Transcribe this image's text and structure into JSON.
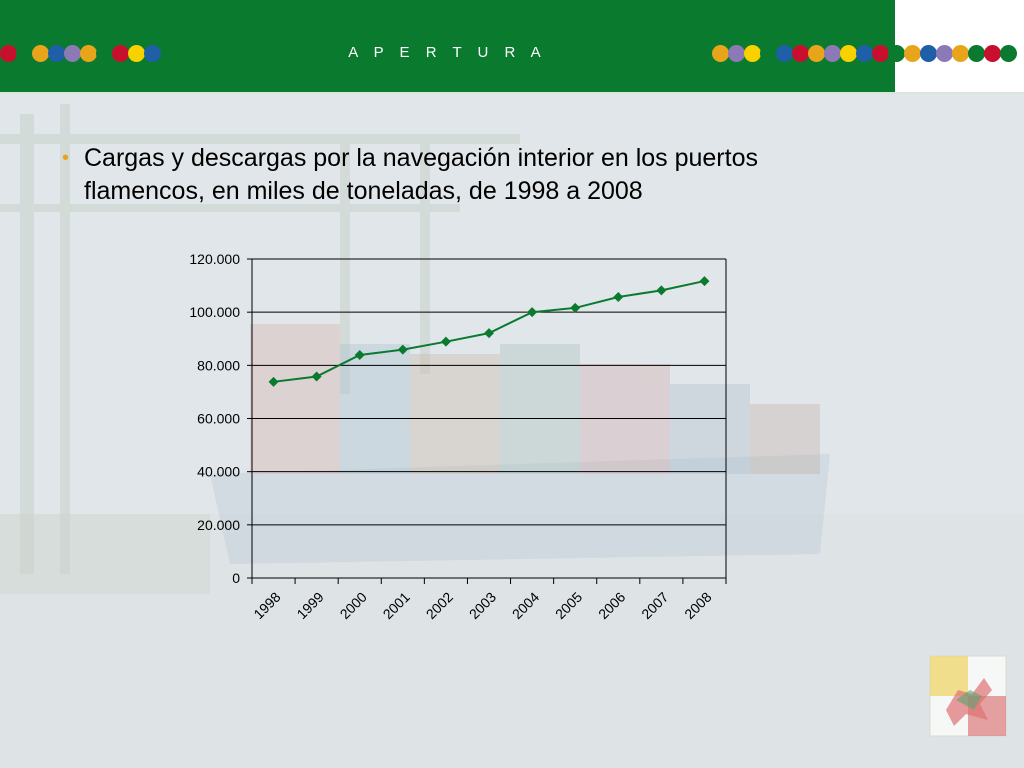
{
  "header": {
    "title": "A P E R T U R A",
    "left_dot_colors": [
      "#c8102e",
      "#0a7a2f",
      "#e8a51b",
      "#1f5fa8",
      "#8c7ab6",
      "#e8a51b",
      "#0a7a2f",
      "#c8102e",
      "#f7d100",
      "#1f5fa8"
    ],
    "right_dot_colors": [
      "#e8a51b",
      "#8c7ab6",
      "#f7d100",
      "#0a7a2f",
      "#1f5fa8",
      "#c8102e",
      "#e8a51b",
      "#8c7ab6",
      "#f7d100",
      "#1f5fa8",
      "#c8102e",
      "#0a7a2f",
      "#e8a51b",
      "#1f5fa8",
      "#8c7ab6",
      "#e8a51b",
      "#0a7a2f",
      "#c8102e",
      "#0a7a2f"
    ]
  },
  "content": {
    "bullet_text": "Cargas y descargas por la navegación interior en los puertos flamencos, en miles de toneladas, de 1998 a 2008"
  },
  "chart_data": {
    "type": "line",
    "title": "",
    "xlabel": "",
    "ylabel": "",
    "x": [
      "1998",
      "1999",
      "2000",
      "2001",
      "2002",
      "2003",
      "2004",
      "2005",
      "2006",
      "2007",
      "2008"
    ],
    "series": [
      {
        "values": [
          73800,
          75800,
          83900,
          85900,
          88900,
          92100,
          100000,
          101600,
          105700,
          108200,
          111700
        ]
      }
    ],
    "ylim": [
      0,
      120000
    ],
    "yticks": [
      "0",
      "20.000",
      "40.000",
      "60.000",
      "80.000",
      "100.000",
      "120.000"
    ],
    "ytick_values": [
      0,
      20000,
      40000,
      60000,
      80000,
      100000,
      120000
    ],
    "grid": true,
    "legend": "none",
    "line_color": "#0a7a2f",
    "marker": "diamond"
  },
  "logo": {
    "icon": "flemish-lion-logo-icon"
  }
}
